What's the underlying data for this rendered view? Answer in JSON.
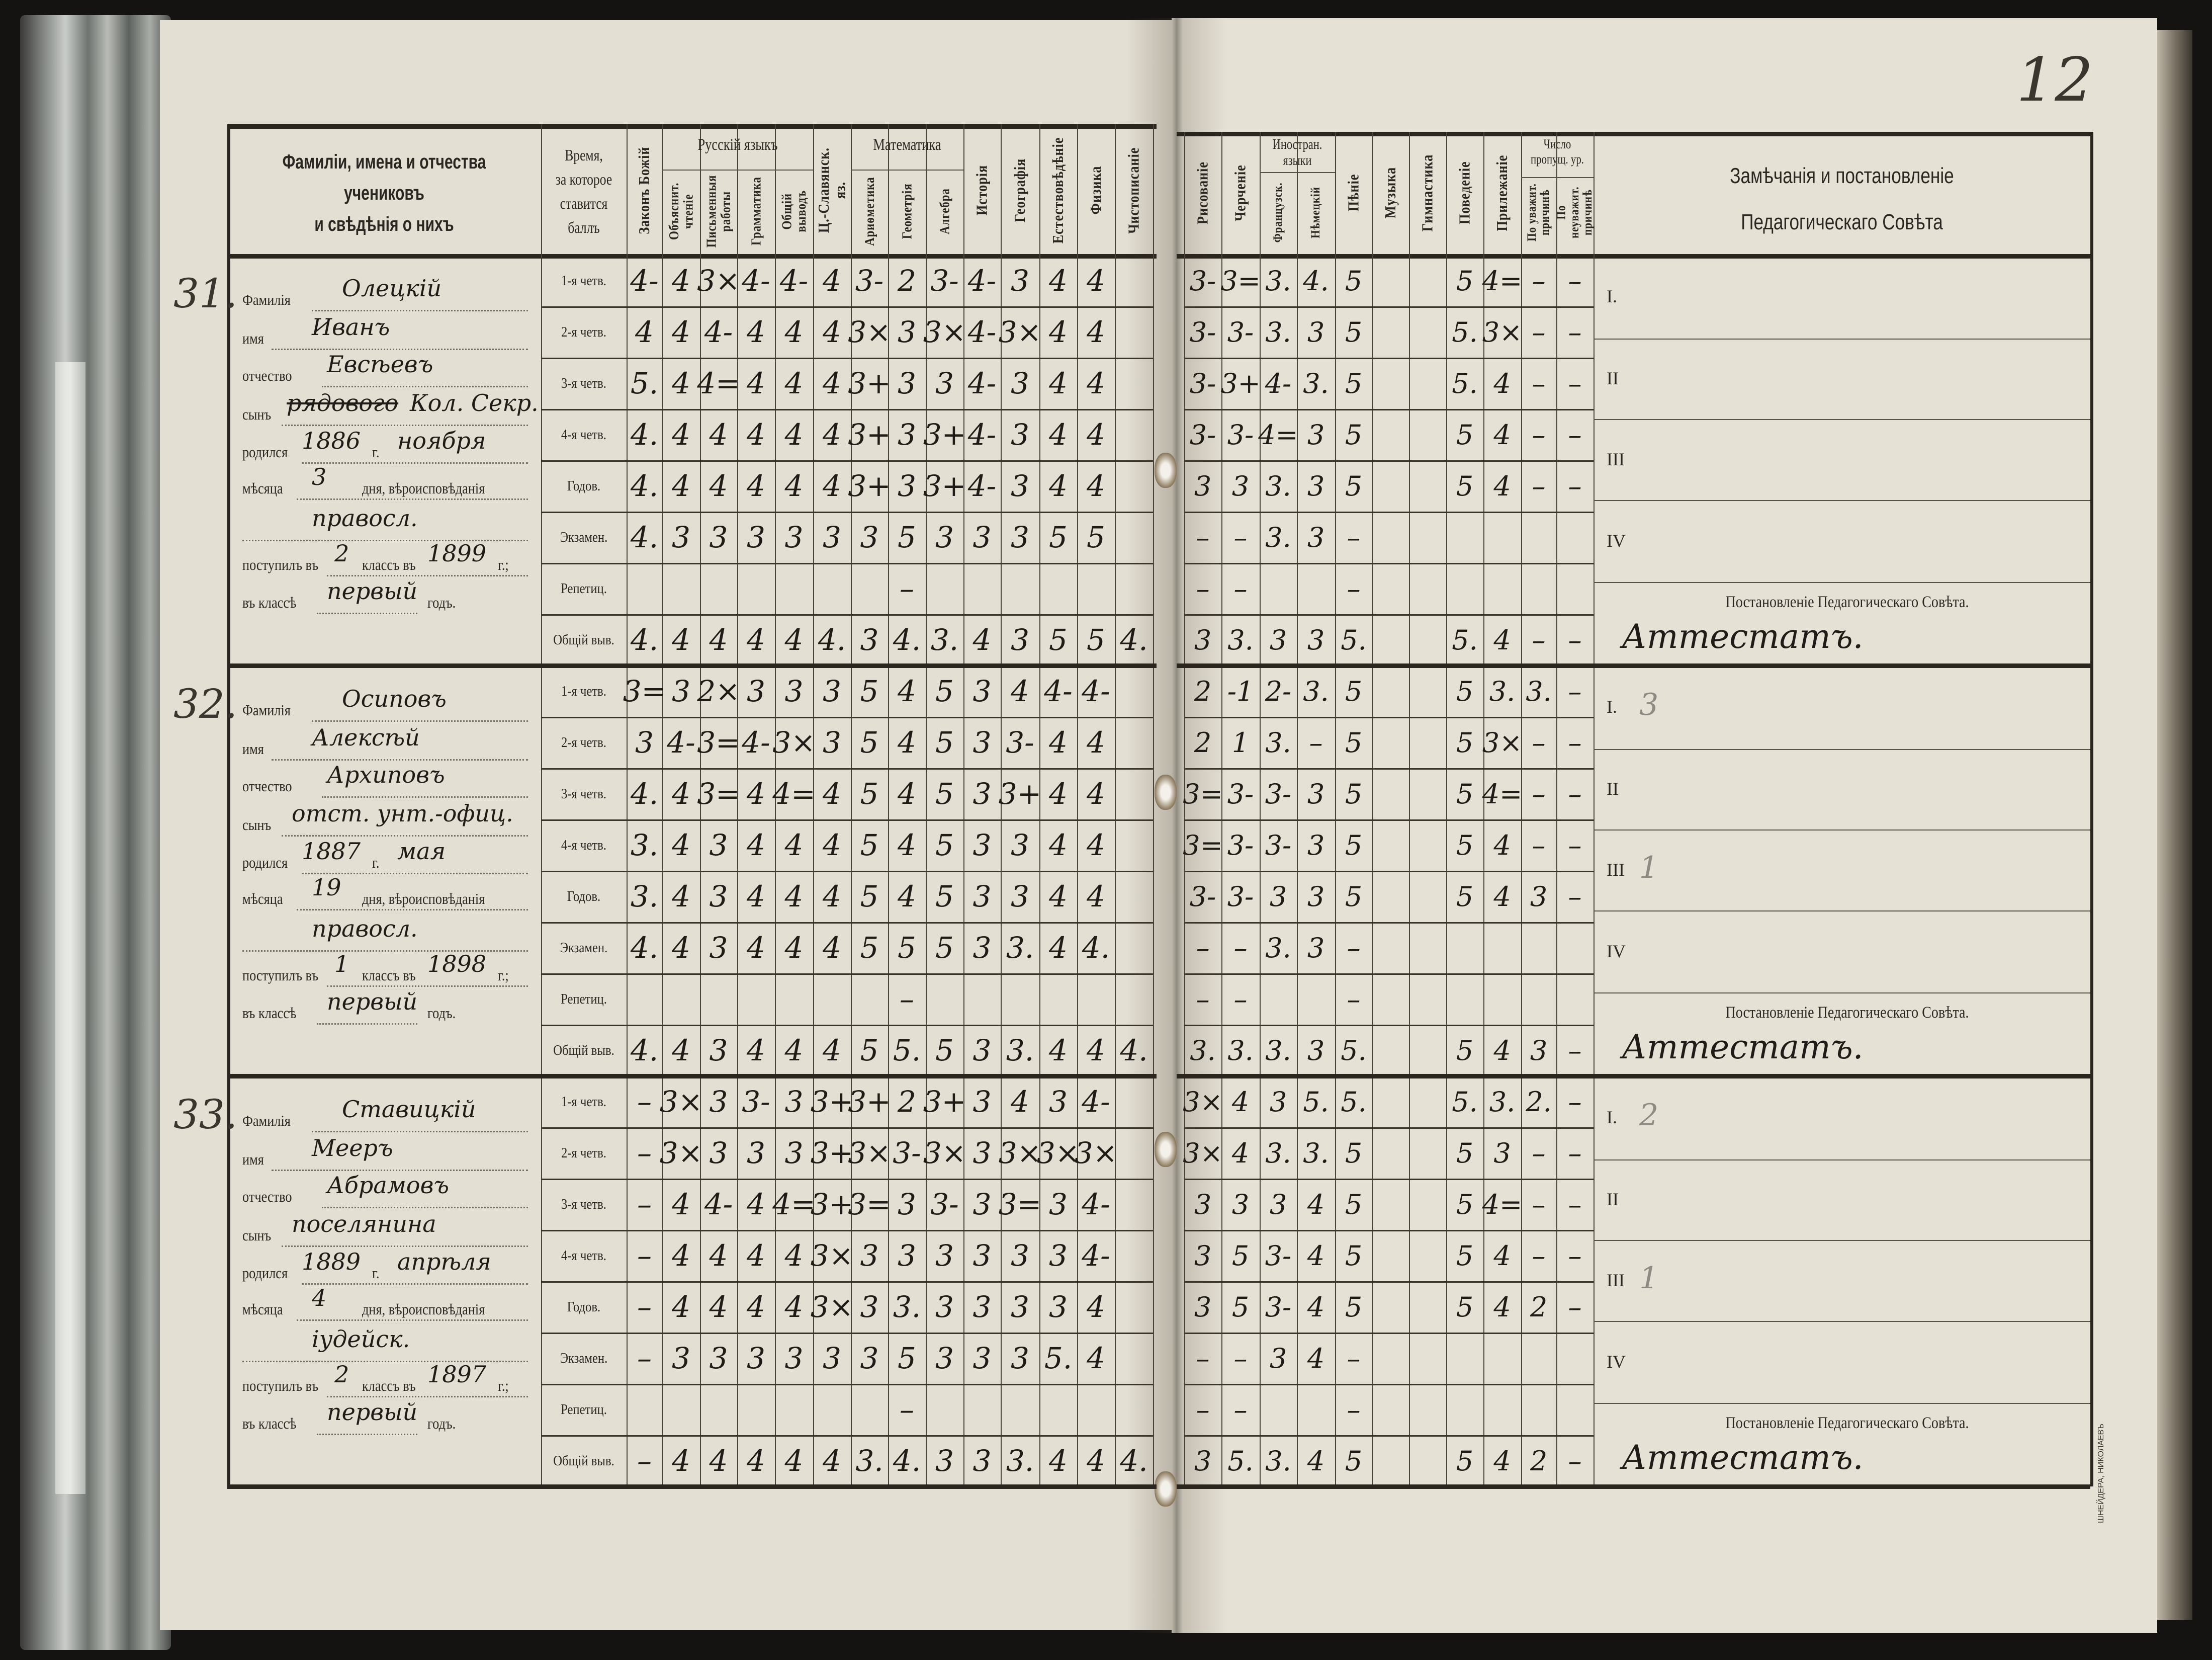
{
  "page_number": "12",
  "printer_mark": "ШНЕЙДЕРА, НИКОЛАЕВЪ",
  "header": {
    "name_col": [
      "Фамиліи, имена и отчества",
      "учениковъ",
      "и свѣдѣнія о нихъ"
    ],
    "time_col": [
      "Время,",
      "за которое",
      "ставится",
      "баллъ"
    ],
    "left_groups": {
      "russian": "Русскій языкъ",
      "math": "Математика"
    },
    "left_columns": [
      "Законъ Божій",
      "Объяснит. чтеніе",
      "Письменныя работы",
      "Грамматика",
      "Общій выводъ",
      "Ц.-Славянск. яз.",
      "Ариѳметика",
      "Геометрія",
      "Алгебра",
      "Исторія",
      "Географія",
      "Естествовѣдѣніе",
      "Физика",
      "Чистописаніе"
    ],
    "right_groups": {
      "foreign": "Иностран. языки",
      "absences": "Число пропущ. ур."
    },
    "right_columns": [
      "Рисованіе",
      "Черченіе",
      "Французск.",
      "Нѣмецкій",
      "Пѣніе",
      "Музыка",
      "Гимнастика",
      "Поведеніе",
      "Прилежаніе",
      "По уважит. причинѣ",
      "По неуважит. причинѣ"
    ],
    "remarks_title": [
      "Замѣчанія и постановленіе",
      "Педагогическаго Совѣта"
    ]
  },
  "row_labels": [
    "1-я четв.",
    "2-я четв.",
    "3-я четв.",
    "4-я четв.",
    "Годов.",
    "Экзамен.",
    "Репетиц.",
    "Общій выв."
  ],
  "field_labels": {
    "surname": "Фамилія",
    "name": "имя",
    "patronymic": "отчество",
    "son_of": "сынъ",
    "born": "родился",
    "year_suffix": "г.",
    "month": "мѣсяца",
    "day_religion": "дня, вѣроисповѣданія",
    "entered": "поступилъ въ",
    "class_in": "классъ въ",
    "year_end": "г.;",
    "in_class": "въ классѣ",
    "year_word": "годъ."
  },
  "remark_sections": [
    "I.",
    "II",
    "III",
    "IV"
  ],
  "council_label": "Постановленіе Педагогическаго Совѣта.",
  "students": [
    {
      "number": "31.",
      "surname": "Олецкій",
      "name": "Иванъ",
      "patronymic": "Евсѣевъ",
      "son_of_struck": "рядового",
      "son_of": "Кол. Секр.",
      "born_year": "1886",
      "born_month": "ноября",
      "born_day": "3",
      "religion": "правосл.",
      "entered_class": "2",
      "entered_year": "1899",
      "year_in_class": "первый",
      "grades_left": [
        [
          "4-",
          "4",
          "3×",
          "4-",
          "4-",
          "4",
          "3-",
          "2",
          "3-",
          "4-",
          "3",
          "4",
          "4",
          ""
        ],
        [
          "4",
          "4",
          "4-",
          "4",
          "4",
          "4",
          "3×",
          "3",
          "3×",
          "4-",
          "3×",
          "4",
          "4",
          ""
        ],
        [
          "5.",
          "4",
          "4=",
          "4",
          "4",
          "4",
          "3+",
          "3",
          "3",
          "4-",
          "3",
          "4",
          "4",
          ""
        ],
        [
          "4.",
          "4",
          "4",
          "4",
          "4",
          "4",
          "3+",
          "3",
          "3+",
          "4-",
          "3",
          "4",
          "4",
          ""
        ],
        [
          "4.",
          "4",
          "4",
          "4",
          "4",
          "4",
          "3+",
          "3",
          "3+",
          "4-",
          "3",
          "4",
          "4",
          ""
        ],
        [
          "4.",
          "3",
          "3",
          "3",
          "3",
          "3",
          "3",
          "5",
          "3",
          "3",
          "3",
          "5",
          "5",
          ""
        ],
        [
          "",
          "",
          "",
          "",
          "",
          "",
          "",
          "–",
          "",
          "",
          "",
          "",
          "",
          ""
        ],
        [
          "4.",
          "4",
          "4",
          "4",
          "4",
          "4.",
          "3",
          "4.",
          "3.",
          "4",
          "3",
          "5",
          "5",
          "4."
        ]
      ],
      "grades_right": [
        [
          "3-",
          "3=",
          "3.",
          "4.",
          "5",
          "",
          "",
          "5",
          "4=",
          "–",
          "–"
        ],
        [
          "3-",
          "3-",
          "3.",
          "3",
          "5",
          "",
          "",
          "5.",
          "3×",
          "–",
          "–"
        ],
        [
          "3-",
          "3+",
          "4-",
          "3.",
          "5",
          "",
          "",
          "5.",
          "4",
          "–",
          "–"
        ],
        [
          "3-",
          "3-",
          "4=",
          "3",
          "5",
          "",
          "",
          "5",
          "4",
          "–",
          "–"
        ],
        [
          "3",
          "3",
          "3.",
          "3",
          "5",
          "",
          "",
          "5",
          "4",
          "–",
          "–"
        ],
        [
          "–",
          "–",
          "3.",
          "3",
          "–",
          "",
          "",
          "",
          "",
          "",
          ""
        ],
        [
          "–",
          "–",
          "",
          "",
          "–",
          "",
          "",
          "",
          "",
          "",
          ""
        ],
        [
          "3",
          "3.",
          "3",
          "3",
          "5.",
          "",
          "",
          "5.",
          "4",
          "–",
          "–"
        ]
      ],
      "remarks": {},
      "council_decision": "Аттестатъ."
    },
    {
      "number": "32.",
      "surname": "Осиповъ",
      "name": "Алексѣй",
      "patronymic": "Архиповъ",
      "son_of_struck": "",
      "son_of": "отст. унт.-офиц.",
      "born_year": "1887",
      "born_month": "мая",
      "born_day": "19",
      "religion": "правосл.",
      "entered_class": "1",
      "entered_year": "1898",
      "year_in_class": "первый",
      "grades_left": [
        [
          "3=",
          "3",
          "2×",
          "3",
          "3",
          "3",
          "5",
          "4",
          "5",
          "3",
          "4",
          "4-",
          "4-",
          ""
        ],
        [
          "3",
          "4-",
          "3=",
          "4-",
          "3×",
          "3",
          "5",
          "4",
          "5",
          "3",
          "3-",
          "4",
          "4",
          ""
        ],
        [
          "4.",
          "4",
          "3=",
          "4",
          "4=",
          "4",
          "5",
          "4",
          "5",
          "3",
          "3+",
          "4",
          "4",
          ""
        ],
        [
          "3.",
          "4",
          "3",
          "4",
          "4",
          "4",
          "5",
          "4",
          "5",
          "3",
          "3",
          "4",
          "4",
          ""
        ],
        [
          "3.",
          "4",
          "3",
          "4",
          "4",
          "4",
          "5",
          "4",
          "5",
          "3",
          "3",
          "4",
          "4",
          ""
        ],
        [
          "4.",
          "4",
          "3",
          "4",
          "4",
          "4",
          "5",
          "5",
          "5",
          "3",
          "3.",
          "4",
          "4.",
          ""
        ],
        [
          "",
          "",
          "",
          "",
          "",
          "",
          "",
          "–",
          "",
          "",
          "",
          "",
          "",
          ""
        ],
        [
          "4.",
          "4",
          "3",
          "4",
          "4",
          "4",
          "5",
          "5.",
          "5",
          "3",
          "3.",
          "4",
          "4",
          "4."
        ]
      ],
      "grades_right": [
        [
          "2",
          "-1",
          "2-",
          "3.",
          "5",
          "",
          "",
          "5",
          "3.",
          "3.",
          "–"
        ],
        [
          "2",
          "1",
          "3.",
          "–",
          "5",
          "",
          "",
          "5",
          "3×",
          "–",
          "–"
        ],
        [
          "3=",
          "3-",
          "3-",
          "3",
          "5",
          "",
          "",
          "5",
          "4=",
          "–",
          "–"
        ],
        [
          "3=",
          "3-",
          "3-",
          "3",
          "5",
          "",
          "",
          "5",
          "4",
          "–",
          "–"
        ],
        [
          "3-",
          "3-",
          "3",
          "3",
          "5",
          "",
          "",
          "5",
          "4",
          "3",
          "–"
        ],
        [
          "–",
          "–",
          "3.",
          "3",
          "–",
          "",
          "",
          "",
          "",
          "",
          ""
        ],
        [
          "–",
          "–",
          "",
          "",
          "–",
          "",
          "",
          "",
          "",
          "",
          ""
        ],
        [
          "3.",
          "3.",
          "3.",
          "3",
          "5.",
          "",
          "",
          "5",
          "4",
          "3",
          "–"
        ]
      ],
      "remarks": {
        "I": "3",
        "III": "1"
      },
      "council_decision": "Аттестатъ."
    },
    {
      "number": "33.",
      "surname": "Ставицкій",
      "name": "Мееръ",
      "patronymic": "Абрамовъ",
      "son_of_struck": "",
      "son_of": "поселянина",
      "born_year": "1889",
      "born_month": "апрѣля",
      "born_day": "4",
      "religion": "іудейск.",
      "entered_class": "2",
      "entered_year": "1897",
      "year_in_class": "первый",
      "grades_left": [
        [
          "–",
          "3×",
          "3",
          "3-",
          "3",
          "3+",
          "3+",
          "2",
          "3+",
          "3",
          "4",
          "3",
          "4-",
          ""
        ],
        [
          "–",
          "3×",
          "3",
          "3",
          "3",
          "3+",
          "3×",
          "3-",
          "3×",
          "3",
          "3×",
          "3×",
          "3×",
          ""
        ],
        [
          "–",
          "4",
          "4-",
          "4",
          "4=",
          "3+",
          "3=",
          "3",
          "3-",
          "3",
          "3=",
          "3",
          "4-",
          ""
        ],
        [
          "–",
          "4",
          "4",
          "4",
          "4",
          "3×",
          "3",
          "3",
          "3",
          "3",
          "3",
          "3",
          "4-",
          ""
        ],
        [
          "–",
          "4",
          "4",
          "4",
          "4",
          "3×",
          "3",
          "3.",
          "3",
          "3",
          "3",
          "3",
          "4",
          ""
        ],
        [
          "–",
          "3",
          "3",
          "3",
          "3",
          "3",
          "3",
          "5",
          "3",
          "3",
          "3",
          "5.",
          "4",
          ""
        ],
        [
          "",
          "",
          "",
          "",
          "",
          "",
          "",
          "–",
          "",
          "",
          "",
          "",
          "",
          ""
        ],
        [
          "–",
          "4",
          "4",
          "4",
          "4",
          "4",
          "3.",
          "4.",
          "3",
          "3",
          "3.",
          "4",
          "4",
          "4."
        ]
      ],
      "grades_right": [
        [
          "3×",
          "4",
          "3",
          "5.",
          "5.",
          "",
          "",
          "5.",
          "3.",
          "2.",
          "–"
        ],
        [
          "3×",
          "4",
          "3.",
          "3.",
          "5",
          "",
          "",
          "5",
          "3",
          "–",
          "–"
        ],
        [
          "3",
          "3",
          "3",
          "4",
          "5",
          "",
          "",
          "5",
          "4=",
          "–",
          "–"
        ],
        [
          "3",
          "5",
          "3-",
          "4",
          "5",
          "",
          "",
          "5",
          "4",
          "–",
          "–"
        ],
        [
          "3",
          "5",
          "3-",
          "4",
          "5",
          "",
          "",
          "5",
          "4",
          "2",
          "–"
        ],
        [
          "–",
          "–",
          "3",
          "4",
          "–",
          "",
          "",
          "",
          "",
          "",
          ""
        ],
        [
          "–",
          "–",
          "",
          "",
          "–",
          "",
          "",
          "",
          "",
          "",
          ""
        ],
        [
          "3",
          "5.",
          "3.",
          "4",
          "5",
          "",
          "",
          "5",
          "4",
          "2",
          "–"
        ]
      ],
      "remarks": {
        "I": "2",
        "III": "1"
      },
      "council_decision": "Аттестатъ."
    }
  ]
}
